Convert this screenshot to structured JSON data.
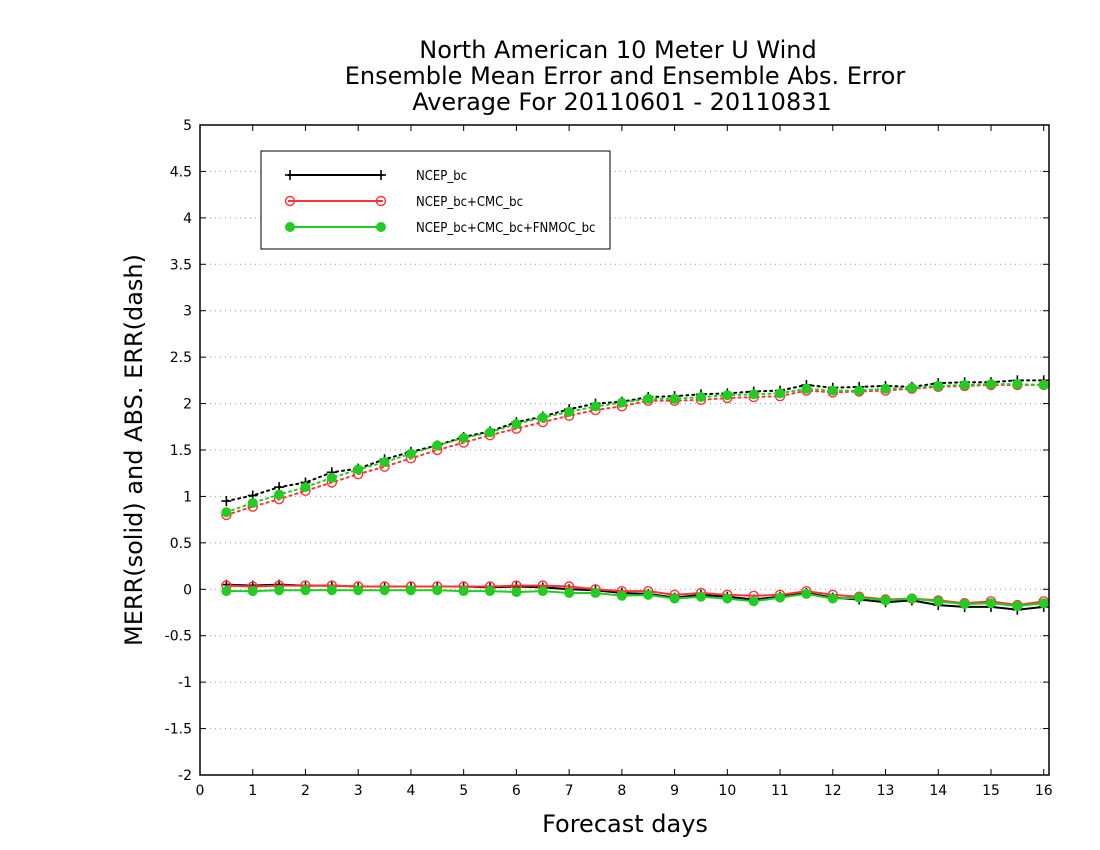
{
  "chart_data": {
    "type": "line",
    "title": [
      "North American 10 Meter U Wind",
      "Ensemble Mean Error and Ensemble Abs. Error",
      "Average For 20110601 - 20110831"
    ],
    "xlabel": "Forecast days",
    "ylabel": "MERR(solid) and ABS. ERR(dash)",
    "xlim": [
      0,
      16.1
    ],
    "ylim": [
      -2,
      5
    ],
    "x_ticks": [
      0,
      1,
      2,
      3,
      4,
      5,
      6,
      7,
      8,
      9,
      10,
      11,
      12,
      13,
      14,
      15,
      16
    ],
    "y_ticks": [
      -2,
      -1.5,
      -1,
      -0.5,
      0,
      0.5,
      1,
      1.5,
      2,
      2.5,
      3,
      3.5,
      4,
      4.5,
      5
    ],
    "y_tick_labels": [
      "-2",
      "-1.5",
      "-1",
      "-0.5",
      "0",
      "0.5",
      "1",
      "1.5",
      "2",
      "2.5",
      "3",
      "3.5",
      "4",
      "4.5",
      "5"
    ],
    "grid": true,
    "legend_placement": "top-left",
    "x": [
      0.5,
      1,
      1.5,
      2,
      2.5,
      3,
      3.5,
      4,
      4.5,
      5,
      5.5,
      6,
      6.5,
      7,
      7.5,
      8,
      8.5,
      9,
      9.5,
      10,
      10.5,
      11,
      11.5,
      12,
      12.5,
      13,
      13.5,
      14,
      14.5,
      15,
      15.5,
      16
    ],
    "series": [
      {
        "name": "NCEP_bc",
        "color": "#000000",
        "marker": "plus",
        "merr": [
          0.05,
          0.04,
          0.05,
          0.04,
          0.04,
          0.03,
          0.03,
          0.03,
          0.03,
          0.03,
          0.02,
          0.03,
          0.02,
          0.0,
          -0.01,
          -0.04,
          -0.05,
          -0.09,
          -0.06,
          -0.08,
          -0.11,
          -0.08,
          -0.04,
          -0.09,
          -0.11,
          -0.14,
          -0.12,
          -0.17,
          -0.19,
          -0.19,
          -0.22,
          -0.19
        ],
        "abs_err": [
          0.95,
          1.01,
          1.1,
          1.15,
          1.26,
          1.3,
          1.4,
          1.48,
          1.55,
          1.64,
          1.7,
          1.8,
          1.86,
          1.94,
          2.0,
          2.02,
          2.07,
          2.08,
          2.1,
          2.11,
          2.13,
          2.14,
          2.2,
          2.17,
          2.18,
          2.19,
          2.18,
          2.22,
          2.23,
          2.23,
          2.25,
          2.25
        ]
      },
      {
        "name": "NCEP_bc+CMC_bc",
        "color": "#ff3333",
        "marker": "open-circle",
        "merr": [
          0.04,
          0.03,
          0.04,
          0.04,
          0.04,
          0.03,
          0.03,
          0.03,
          0.03,
          0.03,
          0.03,
          0.04,
          0.04,
          0.03,
          0.0,
          -0.02,
          -0.02,
          -0.06,
          -0.04,
          -0.06,
          -0.07,
          -0.06,
          -0.02,
          -0.06,
          -0.08,
          -0.11,
          -0.1,
          -0.12,
          -0.15,
          -0.13,
          -0.17,
          -0.13
        ],
        "abs_err": [
          0.8,
          0.89,
          0.97,
          1.06,
          1.15,
          1.24,
          1.32,
          1.41,
          1.5,
          1.58,
          1.66,
          1.73,
          1.8,
          1.87,
          1.93,
          1.97,
          2.03,
          2.03,
          2.04,
          2.06,
          2.07,
          2.08,
          2.14,
          2.12,
          2.13,
          2.14,
          2.16,
          2.18,
          2.19,
          2.2,
          2.2,
          2.2
        ]
      },
      {
        "name": "NCEP_bc+CMC_bc+FNMOC_bc",
        "color": "#22cc22",
        "marker": "filled-circle",
        "merr": [
          -0.02,
          -0.02,
          -0.01,
          -0.01,
          -0.01,
          -0.01,
          -0.01,
          -0.01,
          -0.01,
          -0.02,
          -0.02,
          -0.03,
          -0.02,
          -0.04,
          -0.04,
          -0.07,
          -0.06,
          -0.1,
          -0.08,
          -0.1,
          -0.13,
          -0.09,
          -0.05,
          -0.1,
          -0.09,
          -0.12,
          -0.1,
          -0.13,
          -0.16,
          -0.15,
          -0.18,
          -0.15
        ],
        "abs_err": [
          0.83,
          0.93,
          1.02,
          1.1,
          1.2,
          1.29,
          1.37,
          1.46,
          1.55,
          1.63,
          1.69,
          1.78,
          1.85,
          1.91,
          1.97,
          2.01,
          2.05,
          2.05,
          2.07,
          2.09,
          2.1,
          2.11,
          2.16,
          2.14,
          2.14,
          2.16,
          2.17,
          2.19,
          2.2,
          2.21,
          2.21,
          2.2
        ]
      }
    ]
  }
}
